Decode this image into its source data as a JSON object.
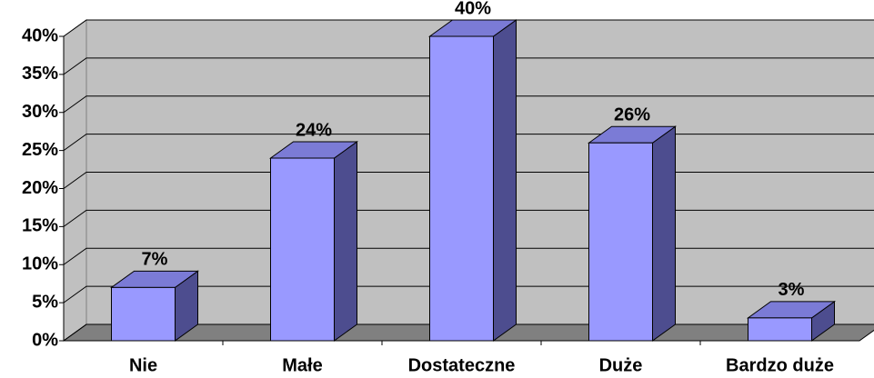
{
  "chart_data": {
    "type": "bar",
    "categories": [
      "Nie",
      "Małe",
      "Dostateczne",
      "Duże",
      "Bardzo duże"
    ],
    "values": [
      7,
      24,
      40,
      26,
      3
    ],
    "value_labels": [
      "7%",
      "24%",
      "40%",
      "26%",
      "3%"
    ],
    "color": "#9999ff",
    "ylim": [
      0,
      40
    ],
    "yticks": [
      {
        "value": 0,
        "label": "0%"
      },
      {
        "value": 5,
        "label": "5%"
      },
      {
        "value": 10,
        "label": "10%"
      },
      {
        "value": 15,
        "label": "15%"
      },
      {
        "value": 20,
        "label": "20%"
      },
      {
        "value": 25,
        "label": "25%"
      },
      {
        "value": 30,
        "label": "30%"
      },
      {
        "value": 35,
        "label": "35%"
      },
      {
        "value": 40,
        "label": "40%"
      }
    ],
    "grid": true
  }
}
